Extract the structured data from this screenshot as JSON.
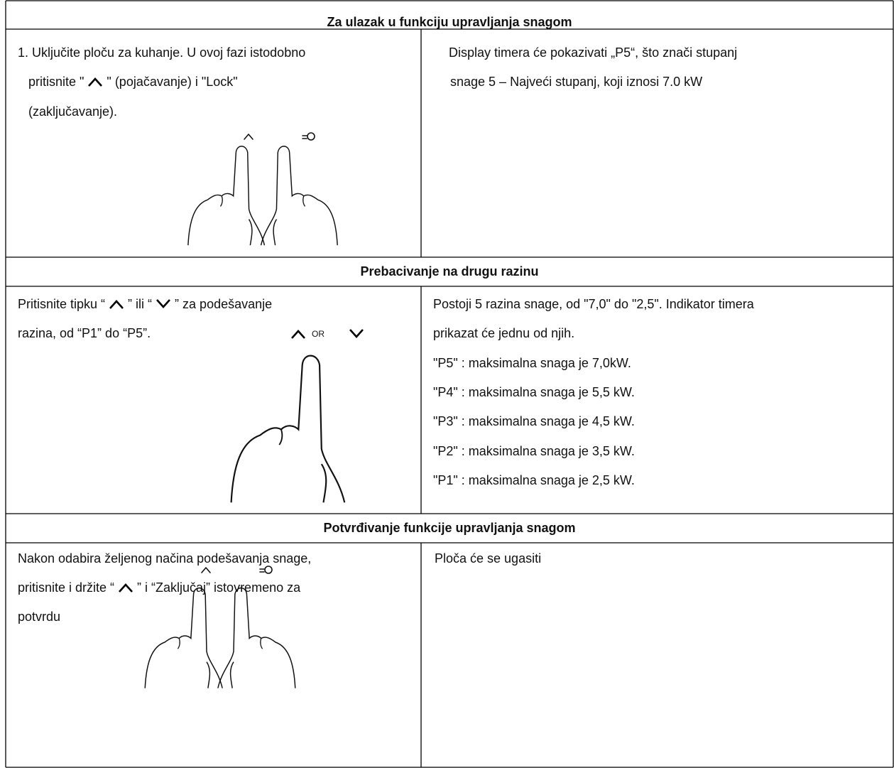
{
  "sections": [
    {
      "heading": "Za ulazak u funkciju upravljanja snagom",
      "left": {
        "lines": [
          [
            "1. Uključite ploču za kuhanje. U ovoj fazi istodobno"
          ],
          [
            "pritisnite \"",
            "\" (pojačavanje) i \"Lock\""
          ],
          [
            "(zaključavanje)."
          ]
        ]
      },
      "right": {
        "lines": [
          [
            "Display timera će pokazivati „P5“, što znači stupanj"
          ],
          [
            "snage 5 – Najveći stupanj, koji iznosi 7.0 kW"
          ]
        ]
      }
    },
    {
      "heading": "Prebacivanje na drugu razinu",
      "left": {
        "lines": [
          [
            "Pritisnite tipku “",
            "” ili “",
            "” za podešavanje"
          ],
          [
            "razina, od “P1” do “P5”."
          ]
        ],
        "illustration_label": "OR"
      },
      "right": {
        "lines": [
          [
            "Postoji 5 razina snage, od \"7,0\" do \"2,5\". Indikator timera"
          ],
          [
            "prikazat će jednu od njih."
          ],
          [
            "\"P5\" : maksimalna snaga je 7,0kW."
          ],
          [
            "\"P4\" : maksimalna snaga je 5,5 kW."
          ],
          [
            "\"P3\" : maksimalna snaga je 4,5 kW."
          ],
          [
            "\"P2\" : maksimalna snaga je 3,5 kW."
          ],
          [
            "\"P1\" : maksimalna snaga je 2,5 kW."
          ]
        ]
      }
    },
    {
      "heading": "Potvrđivanje funkcije upravljanja snagom",
      "left": {
        "lines": [
          [
            "Nakon odabira željenog načina podešavanja snage,"
          ],
          [
            "pritisnite i držite “",
            "” i “Zaključaj” istovremeno za"
          ],
          [
            "potvrdu"
          ]
        ]
      },
      "right": {
        "lines": [
          [
            "Ploča će se ugasiti"
          ]
        ]
      }
    }
  ]
}
